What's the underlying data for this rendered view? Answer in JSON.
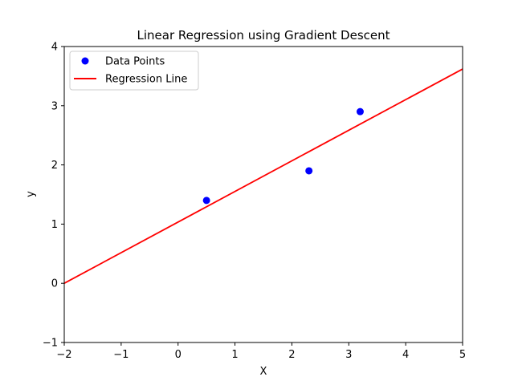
{
  "chart_data": {
    "type": "scatter",
    "title": "Linear Regression using Gradient Descent",
    "xlabel": "X",
    "ylabel": "y",
    "xlim": [
      -2,
      5
    ],
    "ylim": [
      -1,
      4
    ],
    "xticks": [
      "−2",
      "−1",
      "0",
      "1",
      "2",
      "3",
      "4",
      "5"
    ],
    "yticks": [
      "−1",
      "0",
      "1",
      "2",
      "3",
      "4"
    ],
    "grid": false,
    "legend_position": "top-left",
    "series": [
      {
        "name": "Data Points",
        "kind": "scatter",
        "color": "#0000ff",
        "x": [
          0.5,
          2.3,
          3.2
        ],
        "y": [
          1.4,
          1.9,
          2.9
        ]
      },
      {
        "name": "Regression Line",
        "kind": "line",
        "color": "#ff0000",
        "x": [
          -2,
          5
        ],
        "y": [
          0.0,
          3.62
        ]
      }
    ]
  }
}
